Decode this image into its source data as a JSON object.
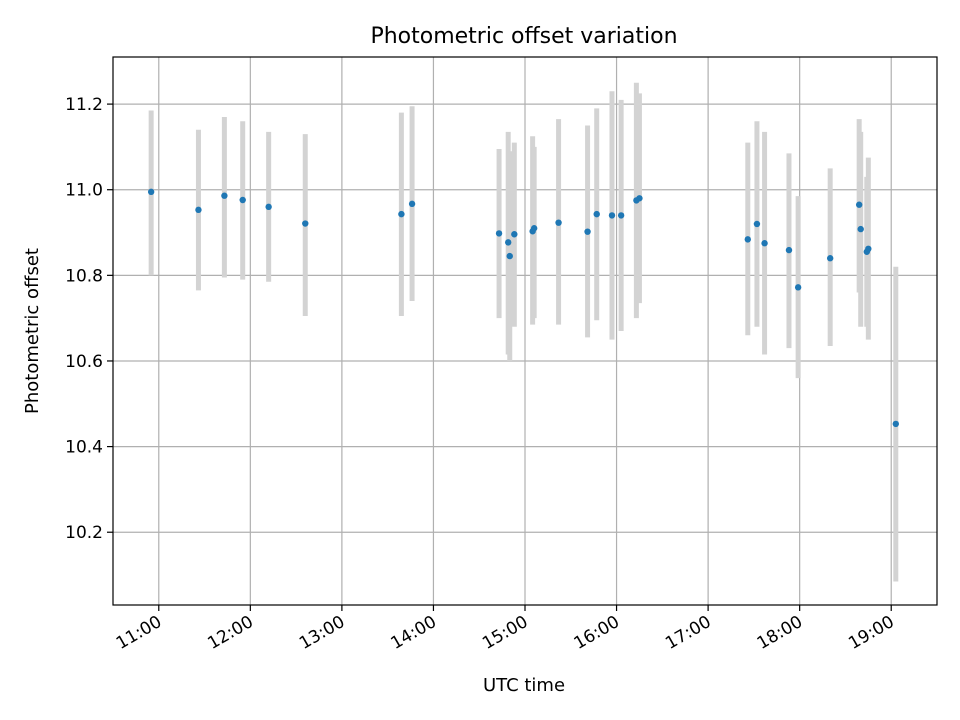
{
  "chart_data": {
    "type": "scatter",
    "title": "Photometric offset variation",
    "xlabel": "UTC time",
    "ylabel": "Photometric offset",
    "xlim": [
      "10:30",
      "19:30"
    ],
    "ylim": [
      10.03,
      11.31
    ],
    "xticks": [
      "11:00",
      "12:00",
      "13:00",
      "14:00",
      "15:00",
      "16:00",
      "17:00",
      "18:00",
      "19:00"
    ],
    "yticks": [
      "10.2",
      "10.4",
      "10.6",
      "10.8",
      "11.0",
      "11.2"
    ],
    "grid": true,
    "marker_color": "#1f77b4",
    "errorbar_color": "#d3d3d3",
    "points": [
      {
        "x": "10:55",
        "y": 10.995,
        "ylow": 10.8,
        "yhigh": 11.185
      },
      {
        "x": "11:26",
        "y": 10.953,
        "ylow": 10.765,
        "yhigh": 11.14
      },
      {
        "x": "11:43",
        "y": 10.986,
        "ylow": 10.795,
        "yhigh": 11.17
      },
      {
        "x": "11:55",
        "y": 10.976,
        "ylow": 10.79,
        "yhigh": 11.16
      },
      {
        "x": "12:12",
        "y": 10.96,
        "ylow": 10.785,
        "yhigh": 11.135
      },
      {
        "x": "12:36",
        "y": 10.921,
        "ylow": 10.705,
        "yhigh": 11.13
      },
      {
        "x": "13:39",
        "y": 10.943,
        "ylow": 10.705,
        "yhigh": 11.18
      },
      {
        "x": "13:46",
        "y": 10.967,
        "ylow": 10.74,
        "yhigh": 11.195
      },
      {
        "x": "14:43",
        "y": 10.898,
        "ylow": 10.7,
        "yhigh": 11.095
      },
      {
        "x": "14:49",
        "y": 10.877,
        "ylow": 10.615,
        "yhigh": 11.135
      },
      {
        "x": "14:50",
        "y": 10.845,
        "ylow": 10.6,
        "yhigh": 11.09
      },
      {
        "x": "14:53",
        "y": 10.896,
        "ylow": 10.68,
        "yhigh": 11.11
      },
      {
        "x": "15:05",
        "y": 10.903,
        "ylow": 10.685,
        "yhigh": 11.125
      },
      {
        "x": "15:06",
        "y": 10.91,
        "ylow": 10.7,
        "yhigh": 11.1
      },
      {
        "x": "15:22",
        "y": 10.923,
        "ylow": 10.685,
        "yhigh": 11.165
      },
      {
        "x": "15:41",
        "y": 10.902,
        "ylow": 10.655,
        "yhigh": 11.15
      },
      {
        "x": "15:47",
        "y": 10.943,
        "ylow": 10.695,
        "yhigh": 11.19
      },
      {
        "x": "15:57",
        "y": 10.94,
        "ylow": 10.65,
        "yhigh": 11.23
      },
      {
        "x": "16:03",
        "y": 10.94,
        "ylow": 10.67,
        "yhigh": 11.21
      },
      {
        "x": "16:13",
        "y": 10.975,
        "ylow": 10.7,
        "yhigh": 11.25
      },
      {
        "x": "16:15",
        "y": 10.98,
        "ylow": 10.735,
        "yhigh": 11.225
      },
      {
        "x": "17:26",
        "y": 10.884,
        "ylow": 10.66,
        "yhigh": 11.11
      },
      {
        "x": "17:32",
        "y": 10.92,
        "ylow": 10.68,
        "yhigh": 11.16
      },
      {
        "x": "17:37",
        "y": 10.875,
        "ylow": 10.615,
        "yhigh": 11.135
      },
      {
        "x": "17:53",
        "y": 10.859,
        "ylow": 10.63,
        "yhigh": 11.085
      },
      {
        "x": "17:59",
        "y": 10.772,
        "ylow": 10.56,
        "yhigh": 10.985
      },
      {
        "x": "18:20",
        "y": 10.84,
        "ylow": 10.635,
        "yhigh": 11.05
      },
      {
        "x": "18:39",
        "y": 10.965,
        "ylow": 10.76,
        "yhigh": 11.165
      },
      {
        "x": "18:40",
        "y": 10.908,
        "ylow": 10.68,
        "yhigh": 11.135
      },
      {
        "x": "18:44",
        "y": 10.855,
        "ylow": 10.68,
        "yhigh": 11.03
      },
      {
        "x": "18:45",
        "y": 10.862,
        "ylow": 10.65,
        "yhigh": 11.075
      },
      {
        "x": "19:03",
        "y": 10.453,
        "ylow": 10.085,
        "yhigh": 10.82
      }
    ]
  }
}
